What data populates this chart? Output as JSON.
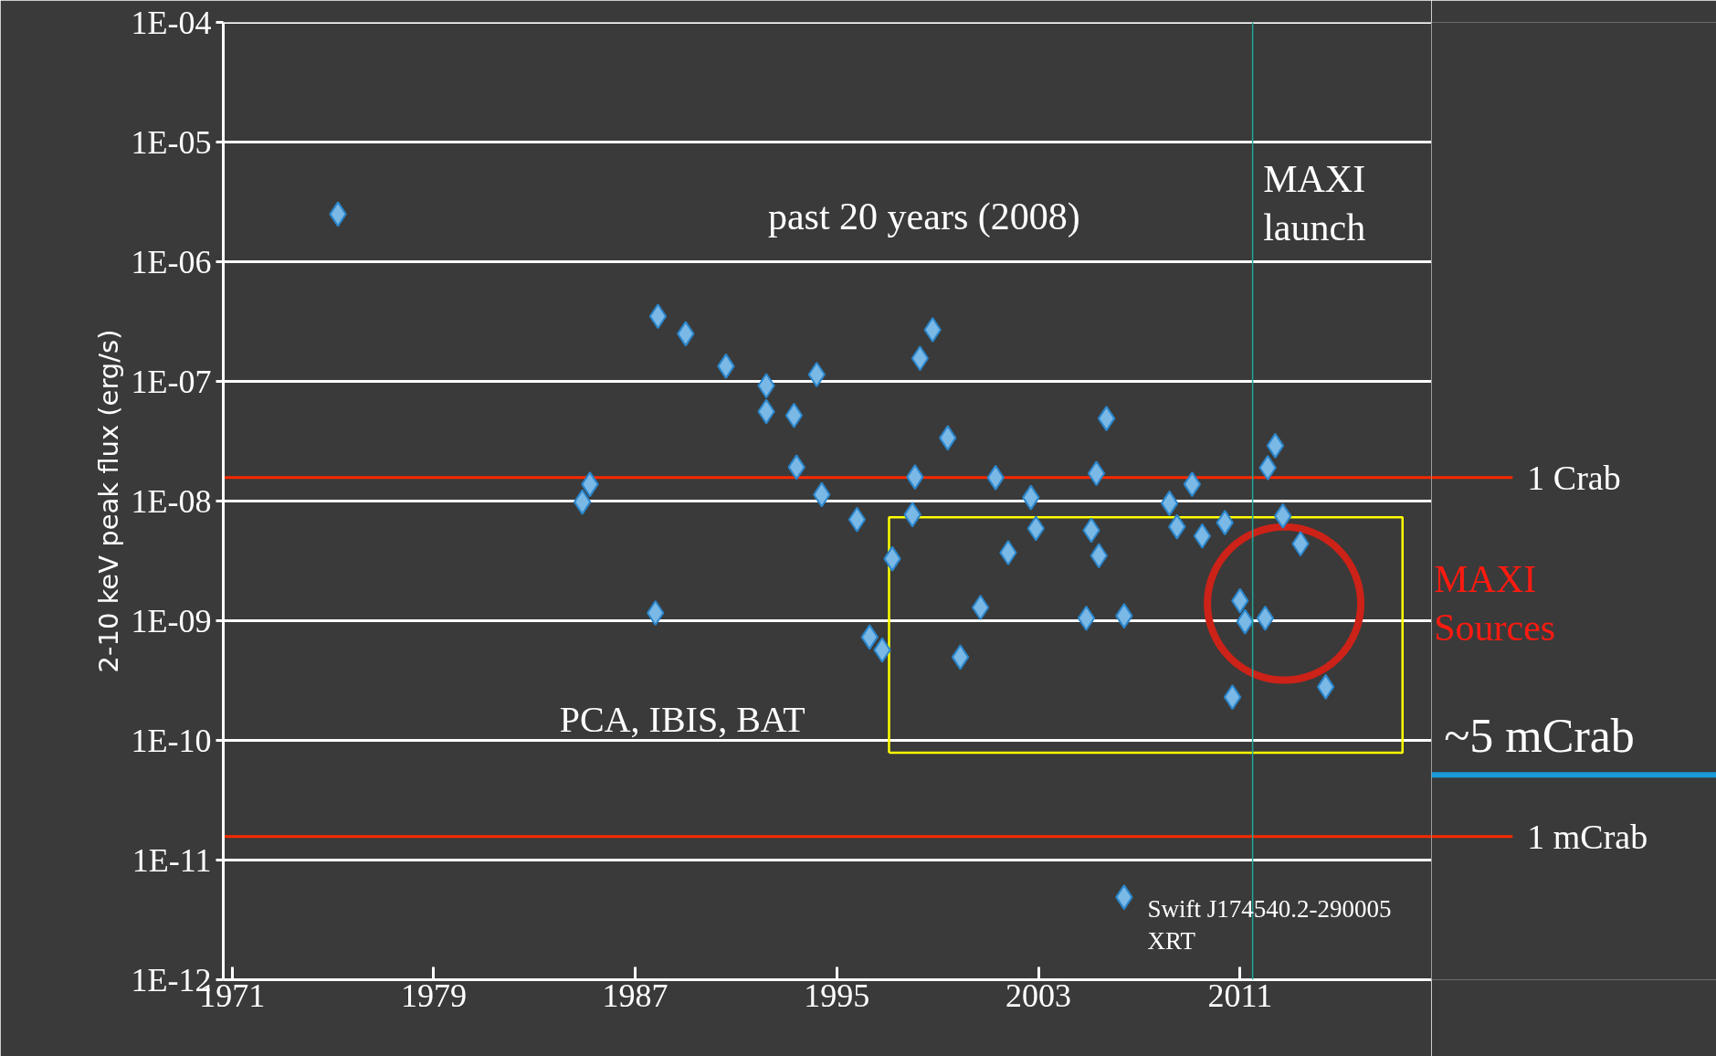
{
  "chart_data": {
    "type": "scatter",
    "ylabel": "2-10 keV peak flux (erg/s)",
    "log": "y",
    "grid": "y",
    "marker": "diamond",
    "xlim": [
      1970.65,
      2018.6
    ],
    "xticks": [
      1971,
      1979,
      1987,
      1995,
      2003,
      2011
    ],
    "ylim": [
      1e-12,
      0.0001
    ],
    "yticks": [
      {
        "value": 1e-12,
        "label": "1E-12"
      },
      {
        "value": 1e-11,
        "label": "1E-11"
      },
      {
        "value": 1e-10,
        "label": "1E-10"
      },
      {
        "value": 1e-09,
        "label": "1E-09"
      },
      {
        "value": 1e-08,
        "label": "1E-08"
      },
      {
        "value": 1e-07,
        "label": "1E-07"
      },
      {
        "value": 1e-06,
        "label": "1E-06"
      },
      {
        "value": 1e-05,
        "label": "1E-05"
      },
      {
        "value": 0.0001,
        "label": "1E-04"
      }
    ],
    "series": [
      {
        "color": "#7ab8e6",
        "x": [
          1975.2,
          1987.9,
          1989.0,
          1990.6,
          1992.2,
          1994.2,
          1992.2,
          1993.3,
          1993.4,
          1994.4,
          1995.8,
          1997.2,
          1985.2,
          1984.9,
          1987.8,
          1996.3,
          1996.8,
          1998.8,
          1998.3,
          1999.4,
          1998.1,
          1998.0,
          2001.3,
          2002.7,
          2002.9,
          2001.8,
          2000.7,
          1999.9,
          2005.7,
          2005.3,
          2005.1,
          2005.4,
          2004.9,
          2006.4,
          2008.2,
          2009.1,
          2008.5,
          2009.5,
          2010.4,
          2012.4,
          2012.1,
          2012.7,
          2013.4,
          2011.0,
          2011.2,
          2012.0,
          2014.4,
          2010.7,
          2006.4
        ],
        "values": [
          2.5e-06,
          3.5e-07,
          2.5e-07,
          1.34e-07,
          9.2e-08,
          1.14e-07,
          5.6e-08,
          5.2e-08,
          1.92e-08,
          1.13e-08,
          7e-09,
          3.3e-09,
          1.38e-08,
          9.8e-09,
          1.16e-09,
          7.3e-10,
          5.7e-10,
          2.7e-07,
          1.56e-07,
          3.37e-08,
          1.59e-08,
          7.7e-09,
          1.57e-08,
          1.07e-08,
          5.9e-09,
          3.7e-09,
          1.29e-09,
          4.96e-10,
          4.9e-08,
          1.7e-08,
          5.7e-09,
          3.5e-09,
          1.05e-09,
          1.1e-09,
          9.6e-09,
          1.38e-08,
          6.1e-09,
          5.1e-09,
          6.6e-09,
          2.9e-08,
          1.9e-08,
          7.5e-09,
          4.4e-09,
          1.47e-09,
          9.8e-10,
          1.05e-09,
          2.8e-10,
          2.3e-10,
          4.9e-12
        ]
      }
    ],
    "ref_lines": [
      {
        "axis": "y",
        "value": 1.57e-08,
        "label": "1 Crab",
        "color": "#ff2a00"
      },
      {
        "axis": "y",
        "value": 1.57e-11,
        "label": "1 mCrab",
        "color": "#ff2a00"
      },
      {
        "axis": "x",
        "value": 2011.5,
        "color": "#1fa89a"
      }
    ],
    "annotations": [
      "past 20 years (2008)",
      "MAXI\nlaunch",
      "MAXI\nSources",
      "PCA, IBIS, BAT",
      "~5 mCrab",
      "Swift J174540.2-290005\nXRT"
    ]
  }
}
